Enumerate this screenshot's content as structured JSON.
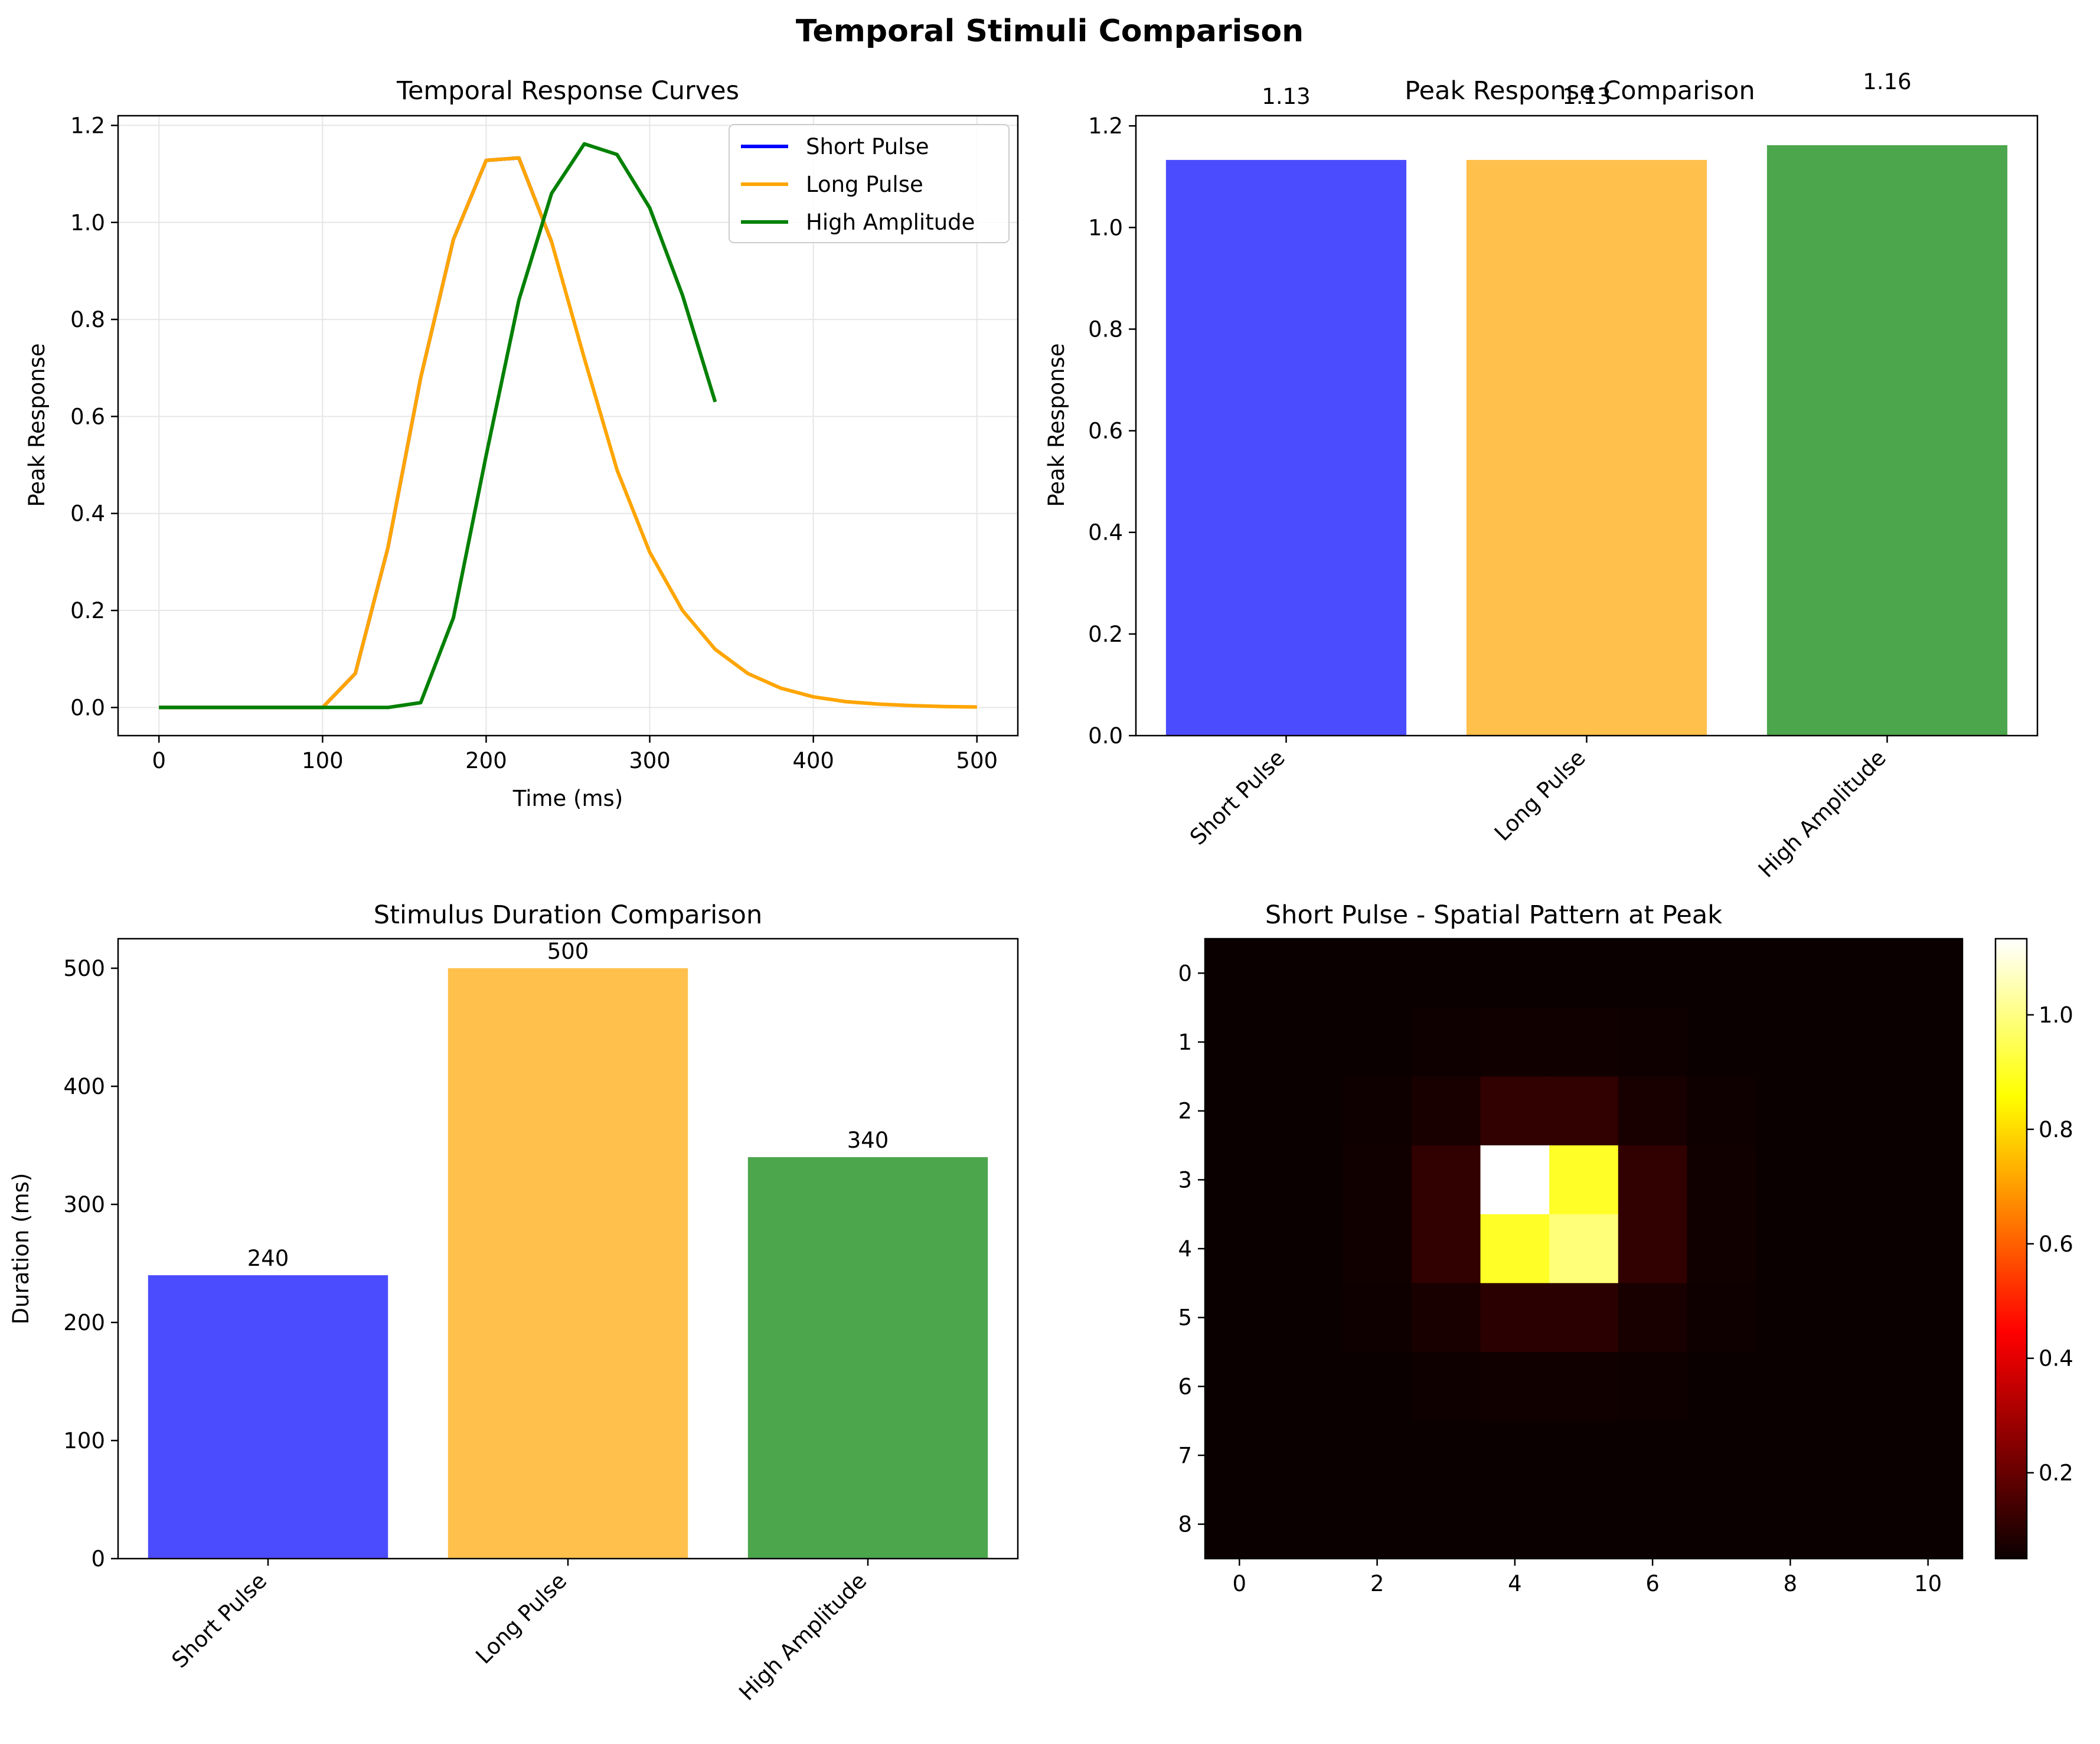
{
  "figure": {
    "title": "Temporal Stimuli Comparison"
  },
  "colors": {
    "short": "#0000ff",
    "long": "#ffa500",
    "high": "#008000",
    "grid": "#e6e6e6"
  },
  "chart_data": [
    {
      "id": "temporal",
      "type": "line",
      "title": "Temporal Response Curves",
      "xlabel": "Time (ms)",
      "ylabel": "Peak Response",
      "xlim": [
        -25,
        525
      ],
      "ylim": [
        -0.058,
        1.22
      ],
      "xticks": [
        0,
        100,
        200,
        300,
        400,
        500
      ],
      "yticks": [
        0.0,
        0.2,
        0.4,
        0.6,
        0.8,
        1.0,
        1.2
      ],
      "grid": true,
      "legend": "top-right",
      "series": [
        {
          "name": "Short Pulse",
          "color": "#0000ff",
          "x": [
            0,
            20,
            40,
            60,
            80,
            100,
            120,
            140,
            160,
            180,
            200,
            220,
            240
          ],
          "y": [
            0,
            0,
            0,
            0,
            0,
            0,
            0.07,
            0.33,
            0.68,
            0.965,
            1.128,
            1.133,
            0.96
          ]
        },
        {
          "name": "Long Pulse",
          "color": "#ffa500",
          "x": [
            0,
            20,
            40,
            60,
            80,
            100,
            120,
            140,
            160,
            180,
            200,
            220,
            240,
            260,
            280,
            300,
            320,
            340,
            360,
            380,
            400,
            420,
            440,
            460,
            480,
            500
          ],
          "y": [
            0,
            0,
            0,
            0,
            0,
            0,
            0.07,
            0.33,
            0.68,
            0.965,
            1.128,
            1.133,
            0.96,
            0.72,
            0.49,
            0.32,
            0.2,
            0.12,
            0.07,
            0.04,
            0.022,
            0.012,
            0.007,
            0.004,
            0.002,
            0.001
          ]
        },
        {
          "name": "High Amplitude",
          "color": "#008000",
          "x": [
            0,
            20,
            40,
            60,
            80,
            100,
            120,
            140,
            160,
            180,
            200,
            220,
            240,
            260,
            280,
            300,
            320,
            340
          ],
          "y": [
            0,
            0,
            0,
            0,
            0,
            0,
            0,
            0,
            0.01,
            0.185,
            0.52,
            0.84,
            1.06,
            1.162,
            1.14,
            1.03,
            0.85,
            0.63
          ]
        }
      ]
    },
    {
      "id": "peak",
      "type": "bar",
      "title": "Peak Response Comparison",
      "ylabel": "Peak Response",
      "categories": [
        "Short Pulse",
        "Long Pulse",
        "High Amplitude"
      ],
      "values": [
        1.133,
        1.133,
        1.162
      ],
      "value_labels": [
        "1.13",
        "1.13",
        "1.16"
      ],
      "colors": [
        "#0000ff",
        "#ffa500",
        "#008000"
      ],
      "opacity": 0.7,
      "ylim": [
        0,
        1.22
      ],
      "yticks": [
        0.0,
        0.2,
        0.4,
        0.6,
        0.8,
        1.0,
        1.2
      ]
    },
    {
      "id": "duration",
      "type": "bar",
      "title": "Stimulus Duration Comparison",
      "ylabel": "Duration (ms)",
      "categories": [
        "Short Pulse",
        "Long Pulse",
        "High Amplitude"
      ],
      "values": [
        240,
        500,
        340
      ],
      "value_labels": [
        "240",
        "500",
        "340"
      ],
      "colors": [
        "#0000ff",
        "#ffa500",
        "#008000"
      ],
      "opacity": 0.7,
      "ylim": [
        0,
        525
      ],
      "yticks": [
        0,
        100,
        200,
        300,
        400,
        500
      ]
    },
    {
      "id": "spatial",
      "type": "heatmap",
      "title": "Short Pulse - Spatial Pattern at Peak",
      "colormap": "hot",
      "vmin": 0.05,
      "vmax": 1.133,
      "xticks": [
        0,
        2,
        4,
        6,
        8,
        10
      ],
      "yticks": [
        0,
        1,
        2,
        3,
        4,
        5,
        6,
        7,
        8
      ],
      "colorbar_ticks": [
        0.2,
        0.4,
        0.6,
        0.8,
        1.0
      ],
      "values": [
        [
          0.05,
          0.05,
          0.05,
          0.05,
          0.05,
          0.05,
          0.05,
          0.05,
          0.05,
          0.05,
          0.05
        ],
        [
          0.05,
          0.05,
          0.05,
          0.055,
          0.06,
          0.06,
          0.055,
          0.05,
          0.05,
          0.05,
          0.05
        ],
        [
          0.05,
          0.05,
          0.055,
          0.07,
          0.11,
          0.11,
          0.07,
          0.055,
          0.05,
          0.05,
          0.05
        ],
        [
          0.05,
          0.05,
          0.06,
          0.11,
          1.133,
          0.9,
          0.11,
          0.06,
          0.05,
          0.05,
          0.05
        ],
        [
          0.05,
          0.05,
          0.06,
          0.11,
          0.9,
          0.99,
          0.11,
          0.06,
          0.05,
          0.05,
          0.05
        ],
        [
          0.05,
          0.05,
          0.055,
          0.07,
          0.1,
          0.1,
          0.07,
          0.055,
          0.05,
          0.05,
          0.05
        ],
        [
          0.05,
          0.05,
          0.05,
          0.055,
          0.06,
          0.06,
          0.055,
          0.05,
          0.05,
          0.05,
          0.05
        ],
        [
          0.05,
          0.05,
          0.05,
          0.05,
          0.05,
          0.05,
          0.05,
          0.05,
          0.05,
          0.05,
          0.05
        ],
        [
          0.05,
          0.05,
          0.05,
          0.05,
          0.05,
          0.05,
          0.05,
          0.05,
          0.05,
          0.05,
          0.05
        ]
      ]
    }
  ]
}
